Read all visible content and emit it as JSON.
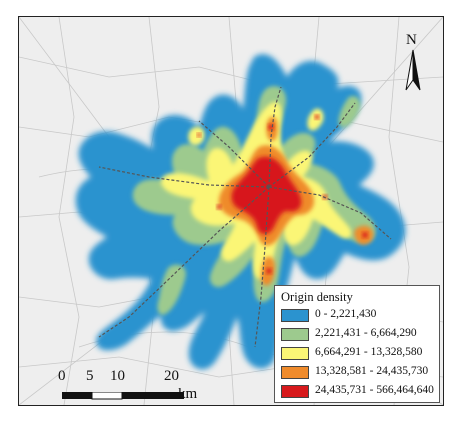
{
  "legend": {
    "title": "Origin density",
    "items": [
      {
        "label": "0 - 2,221,430",
        "color": "#2b93cf"
      },
      {
        "label": "2,221,431 - 6,664,290",
        "color": "#9dca8e"
      },
      {
        "label": "6,664,291 - 13,328,580",
        "color": "#fbf676"
      },
      {
        "label": "13,328,581 - 24,435,730",
        "color": "#ef8b2c"
      },
      {
        "label": "24,435,731 - 566,464,640",
        "color": "#d7191c"
      }
    ]
  },
  "north": {
    "label": "N"
  },
  "scale": {
    "ticks": [
      "0",
      "5",
      "10",
      "20"
    ],
    "unit": "km"
  },
  "colors": {
    "background": "#eeeeee",
    "roads": "#c8c8c8",
    "rail": "#555555"
  }
}
